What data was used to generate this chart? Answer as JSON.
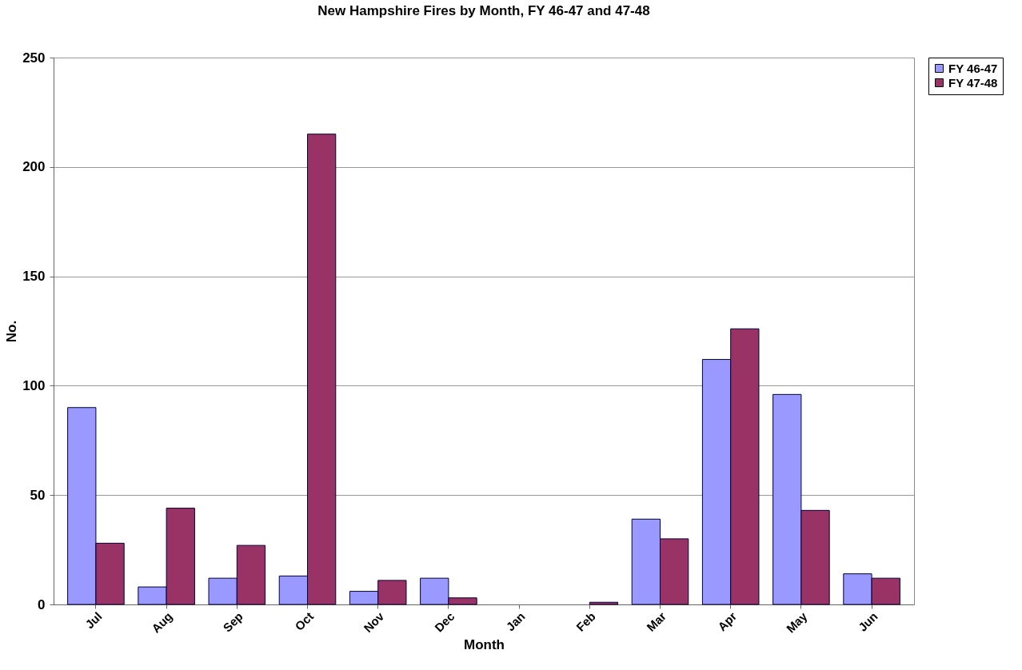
{
  "chart_data": {
    "type": "bar",
    "title": "New Hampshire Fires by Month, FY 46-47 and 47-48",
    "xlabel": "Month",
    "ylabel": "No.",
    "categories": [
      "Jul",
      "Aug",
      "Sep",
      "Oct",
      "Nov",
      "Dec",
      "Jan",
      "Feb",
      "Mar",
      "Apr",
      "May",
      "Jun"
    ],
    "series": [
      {
        "name": "FY 46-47",
        "color": "#9999ff",
        "values": [
          90,
          8,
          12,
          13,
          6,
          12,
          0,
          0,
          39,
          112,
          96,
          14
        ]
      },
      {
        "name": "FY 47-48",
        "color": "#993366",
        "values": [
          28,
          44,
          27,
          215,
          11,
          3,
          0,
          1,
          30,
          126,
          43,
          12
        ]
      }
    ],
    "ylim": [
      0,
      250
    ],
    "yticks": [
      0,
      50,
      100,
      150,
      200,
      250
    ],
    "grid": "y",
    "legend": "right"
  }
}
